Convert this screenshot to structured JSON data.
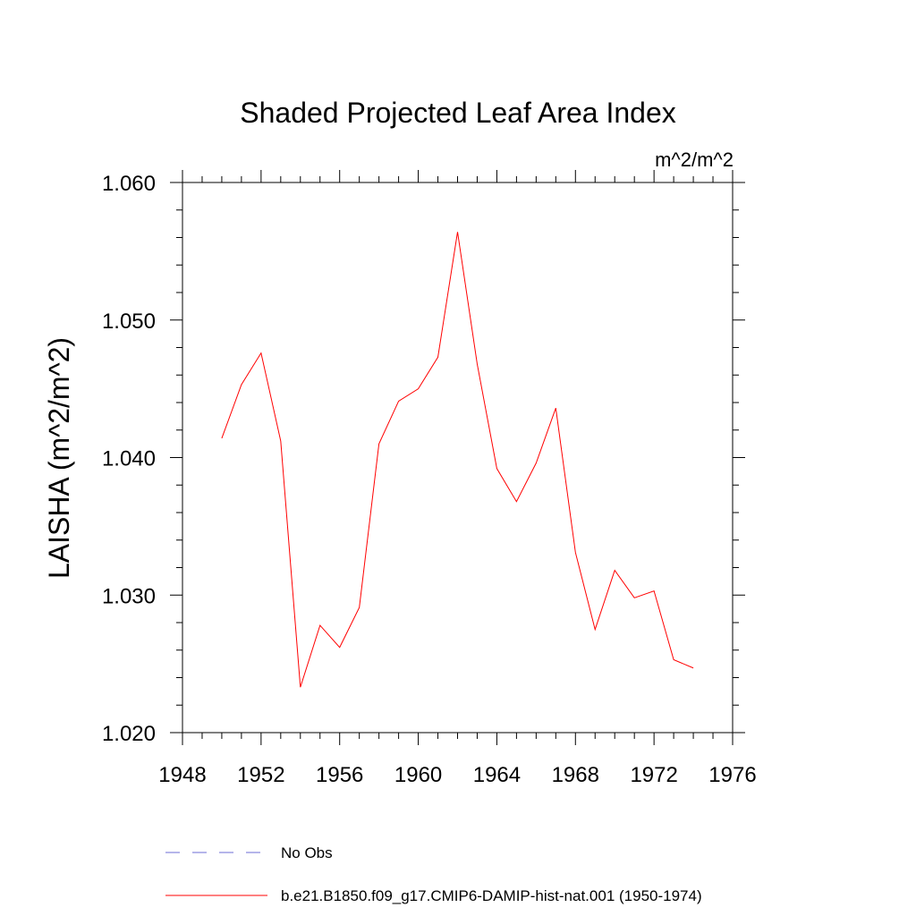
{
  "chart_data": {
    "type": "line",
    "title": "Shaded Projected Leaf Area Index",
    "units_label": "m^2/m^2",
    "ylabel": "LAISHA  (m^2/m^2)",
    "xlabel": "",
    "xlim": [
      1948,
      1976
    ],
    "ylim": [
      1.02,
      1.06
    ],
    "x_ticks": [
      1948,
      1952,
      1956,
      1960,
      1964,
      1968,
      1972,
      1976
    ],
    "x_tick_labels": [
      "1948",
      "1952",
      "1956",
      "1960",
      "1964",
      "1968",
      "1972",
      "1976"
    ],
    "y_ticks": [
      1.02,
      1.03,
      1.04,
      1.05,
      1.06
    ],
    "y_tick_labels": [
      "1.020",
      "1.030",
      "1.040",
      "1.050",
      "1.060"
    ],
    "grid": false,
    "legend_position": "bottom",
    "series": [
      {
        "name": "No Obs",
        "color": "#6b6bd6",
        "dash": "dashed",
        "x": [],
        "values": []
      },
      {
        "name": "b.e21.B1850.f09_g17.CMIP6-DAMIP-hist-nat.001 (1950-1974)",
        "color": "#ff0000",
        "dash": "solid",
        "x": [
          1950,
          1951,
          1952,
          1953,
          1954,
          1955,
          1956,
          1957,
          1958,
          1959,
          1960,
          1961,
          1962,
          1963,
          1964,
          1965,
          1966,
          1967,
          1968,
          1969,
          1970,
          1971,
          1972,
          1973,
          1974
        ],
        "values": [
          1.0414,
          1.0453,
          1.0476,
          1.0412,
          1.0233,
          1.0278,
          1.0262,
          1.0291,
          1.041,
          1.0441,
          1.045,
          1.0473,
          1.0564,
          1.0468,
          1.0392,
          1.0368,
          1.0396,
          1.0436,
          1.0331,
          1.0275,
          1.0318,
          1.0298,
          1.0303,
          1.0253,
          1.0247
        ]
      }
    ]
  }
}
